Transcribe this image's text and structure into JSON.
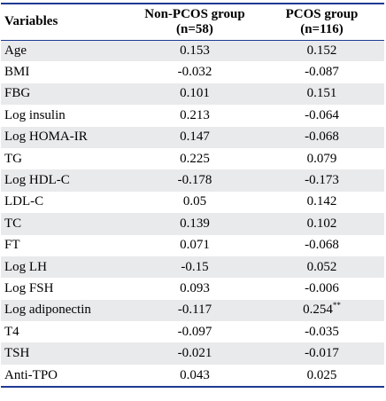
{
  "table": {
    "headers": {
      "variables": "Variables",
      "non_pcos_line1": "Non-PCOS group",
      "non_pcos_line2": "(n=58)",
      "pcos_line1": "PCOS group",
      "pcos_line2": "(n=116)"
    },
    "rows": [
      {
        "name": "Age",
        "non_pcos": "0.153",
        "pcos": "0.152",
        "pcos_sup": ""
      },
      {
        "name": "BMI",
        "non_pcos": "-0.032",
        "pcos": "-0.087",
        "pcos_sup": ""
      },
      {
        "name": "FBG",
        "non_pcos": "0.101",
        "pcos": "0.151",
        "pcos_sup": ""
      },
      {
        "name": "Log insulin",
        "non_pcos": "0.213",
        "pcos": "-0.064",
        "pcos_sup": ""
      },
      {
        "name": "Log HOMA-IR",
        "non_pcos": "0.147",
        "pcos": "-0.068",
        "pcos_sup": ""
      },
      {
        "name": "TG",
        "non_pcos": "0.225",
        "pcos": "0.079",
        "pcos_sup": ""
      },
      {
        "name": "Log HDL-C",
        "non_pcos": "-0.178",
        "pcos": "-0.173",
        "pcos_sup": ""
      },
      {
        "name": "LDL-C",
        "non_pcos": "0.05",
        "pcos": "0.142",
        "pcos_sup": ""
      },
      {
        "name": "TC",
        "non_pcos": "0.139",
        "pcos": "0.102",
        "pcos_sup": ""
      },
      {
        "name": "FT",
        "non_pcos": "0.071",
        "pcos": "-0.068",
        "pcos_sup": ""
      },
      {
        "name": "Log LH",
        "non_pcos": "-0.15",
        "pcos": "0.052",
        "pcos_sup": ""
      },
      {
        "name": "Log FSH",
        "non_pcos": "0.093",
        "pcos": "-0.006",
        "pcos_sup": ""
      },
      {
        "name": "Log adiponectin",
        "non_pcos": "-0.117",
        "pcos": "0.254",
        "pcos_sup": "**"
      },
      {
        "name": "T4",
        "non_pcos": "-0.097",
        "pcos": "-0.035",
        "pcos_sup": ""
      },
      {
        "name": "TSH",
        "non_pcos": "-0.021",
        "pcos": "-0.017",
        "pcos_sup": ""
      },
      {
        "name": "Anti-TPO",
        "non_pcos": "0.043",
        "pcos": "0.025",
        "pcos_sup": ""
      }
    ]
  }
}
